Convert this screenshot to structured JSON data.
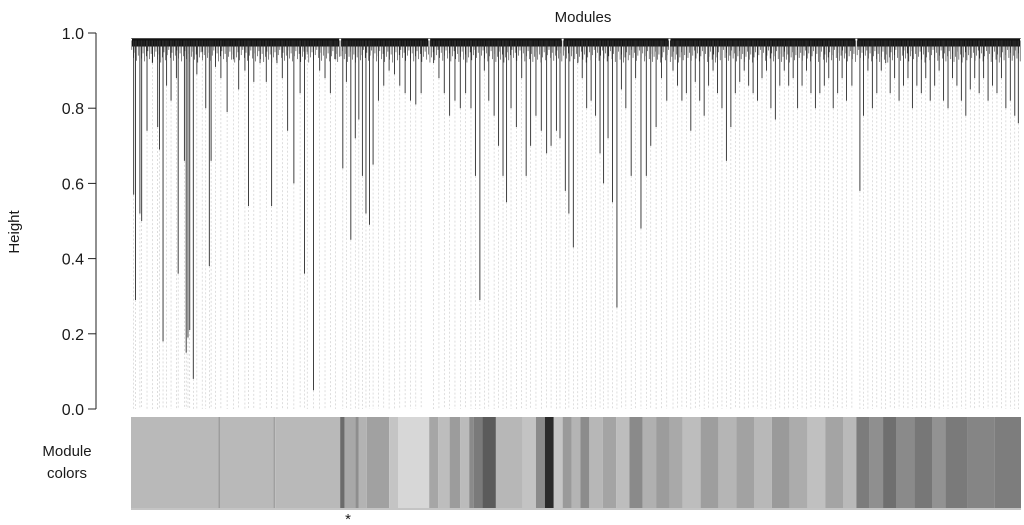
{
  "chart_data": {
    "type": "dendrogram",
    "title": "Modules",
    "ylabel": "Height",
    "ylim": [
      0,
      1
    ],
    "yticks": [
      "0.0",
      "0.2",
      "0.4",
      "0.6",
      "0.8",
      "1.0"
    ],
    "color_bar_label": [
      "Module",
      "colors"
    ],
    "marker_symbol": "*",
    "merge_height": 0.98,
    "clusters": [
      {
        "span": [
          0.0,
          0.235
        ],
        "shade": "#b9b9b9",
        "leaves": [
          [
            0.003,
            0.57
          ],
          [
            0.005,
            0.29
          ],
          [
            0.01,
            0.52
          ],
          [
            0.012,
            0.5
          ],
          [
            0.018,
            0.74
          ],
          [
            0.024,
            0.92
          ],
          [
            0.03,
            0.75
          ],
          [
            0.032,
            0.69
          ],
          [
            0.036,
            0.18
          ],
          [
            0.04,
            0.86
          ],
          [
            0.045,
            0.82
          ],
          [
            0.051,
            0.88
          ],
          [
            0.053,
            0.36
          ],
          [
            0.06,
            0.66
          ],
          [
            0.062,
            0.15
          ],
          [
            0.064,
            0.19
          ],
          [
            0.066,
            0.21
          ],
          [
            0.07,
            0.08
          ],
          [
            0.074,
            0.89
          ],
          [
            0.08,
            0.95
          ],
          [
            0.084,
            0.8
          ],
          [
            0.088,
            0.38
          ],
          [
            0.09,
            0.66
          ],
          [
            0.095,
            0.91
          ],
          [
            0.101,
            0.88
          ],
          [
            0.108,
            0.79
          ],
          [
            0.115,
            0.93
          ],
          [
            0.121,
            0.85
          ],
          [
            0.128,
            0.9
          ],
          [
            0.132,
            0.54
          ],
          [
            0.138,
            0.87
          ],
          [
            0.145,
            0.92
          ],
          [
            0.152,
            0.87
          ],
          [
            0.158,
            0.54
          ],
          [
            0.164,
            0.92
          ],
          [
            0.17,
            0.88
          ],
          [
            0.176,
            0.74
          ],
          [
            0.183,
            0.6
          ],
          [
            0.19,
            0.84
          ],
          [
            0.195,
            0.36
          ],
          [
            0.198,
            0.95
          ],
          [
            0.205,
            0.05
          ],
          [
            0.212,
            0.9
          ],
          [
            0.218,
            0.88
          ],
          [
            0.224,
            0.84
          ],
          [
            0.23,
            0.93
          ]
        ]
      },
      {
        "span": [
          0.235,
          0.335
        ],
        "shade": "#a3a3a3",
        "leaves": [
          [
            0.238,
            0.64
          ],
          [
            0.242,
            0.87
          ],
          [
            0.247,
            0.45
          ],
          [
            0.252,
            0.72
          ],
          [
            0.256,
            0.77
          ],
          [
            0.26,
            0.62
          ],
          [
            0.264,
            0.52
          ],
          [
            0.268,
            0.49
          ],
          [
            0.272,
            0.65
          ],
          [
            0.278,
            0.82
          ],
          [
            0.284,
            0.86
          ],
          [
            0.29,
            0.9
          ],
          [
            0.296,
            0.89
          ],
          [
            0.302,
            0.86
          ],
          [
            0.308,
            0.84
          ],
          [
            0.314,
            0.82
          ],
          [
            0.32,
            0.81
          ],
          [
            0.326,
            0.84
          ]
        ]
      },
      {
        "span": [
          0.335,
          0.485
        ],
        "shade": "#bcbcbc",
        "leaves": [
          [
            0.34,
            0.92
          ],
          [
            0.346,
            0.88
          ],
          [
            0.352,
            0.84
          ],
          [
            0.358,
            0.78
          ],
          [
            0.364,
            0.82
          ],
          [
            0.37,
            0.8
          ],
          [
            0.376,
            0.84
          ],
          [
            0.382,
            0.8
          ],
          [
            0.387,
            0.62
          ],
          [
            0.392,
            0.29
          ],
          [
            0.397,
            0.9
          ],
          [
            0.402,
            0.82
          ],
          [
            0.408,
            0.78
          ],
          [
            0.413,
            0.7
          ],
          [
            0.418,
            0.62
          ],
          [
            0.422,
            0.55
          ],
          [
            0.427,
            0.8
          ],
          [
            0.433,
            0.75
          ],
          [
            0.439,
            0.88
          ],
          [
            0.444,
            0.62
          ],
          [
            0.449,
            0.7
          ],
          [
            0.455,
            0.78
          ],
          [
            0.461,
            0.74
          ],
          [
            0.467,
            0.68
          ],
          [
            0.472,
            0.7
          ],
          [
            0.478,
            0.74
          ],
          [
            0.482,
            0.72
          ]
        ]
      },
      {
        "span": [
          0.485,
          0.605
        ],
        "shade": "#6e6e6e",
        "leaves": [
          [
            0.488,
            0.58
          ],
          [
            0.492,
            0.52
          ],
          [
            0.497,
            0.43
          ],
          [
            0.502,
            0.92
          ],
          [
            0.507,
            0.88
          ],
          [
            0.512,
            0.8
          ],
          [
            0.517,
            0.82
          ],
          [
            0.522,
            0.78
          ],
          [
            0.527,
            0.68
          ],
          [
            0.531,
            0.6
          ],
          [
            0.536,
            0.72
          ],
          [
            0.541,
            0.55
          ],
          [
            0.546,
            0.27
          ],
          [
            0.551,
            0.85
          ],
          [
            0.556,
            0.8
          ],
          [
            0.562,
            0.62
          ],
          [
            0.567,
            0.88
          ],
          [
            0.573,
            0.48
          ],
          [
            0.579,
            0.62
          ],
          [
            0.584,
            0.7
          ],
          [
            0.59,
            0.75
          ],
          [
            0.596,
            0.88
          ],
          [
            0.602,
            0.82
          ]
        ]
      },
      {
        "span": [
          0.605,
          0.815
        ],
        "shade": "#adadad",
        "leaves": [
          [
            0.609,
            0.9
          ],
          [
            0.614,
            0.86
          ],
          [
            0.619,
            0.82
          ],
          [
            0.624,
            0.84
          ],
          [
            0.629,
            0.74
          ],
          [
            0.634,
            0.87
          ],
          [
            0.639,
            0.82
          ],
          [
            0.644,
            0.78
          ],
          [
            0.649,
            0.86
          ],
          [
            0.654,
            0.9
          ],
          [
            0.659,
            0.84
          ],
          [
            0.664,
            0.8
          ],
          [
            0.669,
            0.66
          ],
          [
            0.674,
            0.75
          ],
          [
            0.679,
            0.84
          ],
          [
            0.684,
            0.87
          ],
          [
            0.689,
            0.9
          ],
          [
            0.694,
            0.86
          ],
          [
            0.699,
            0.84
          ],
          [
            0.704,
            0.82
          ],
          [
            0.709,
            0.88
          ],
          [
            0.714,
            0.9
          ],
          [
            0.719,
            0.8
          ],
          [
            0.724,
            0.77
          ],
          [
            0.729,
            0.86
          ],
          [
            0.734,
            0.9
          ],
          [
            0.739,
            0.86
          ],
          [
            0.744,
            0.88
          ],
          [
            0.749,
            0.8
          ],
          [
            0.754,
            0.86
          ],
          [
            0.759,
            0.9
          ],
          [
            0.764,
            0.84
          ],
          [
            0.769,
            0.8
          ],
          [
            0.774,
            0.84
          ],
          [
            0.779,
            0.86
          ],
          [
            0.784,
            0.88
          ],
          [
            0.789,
            0.8
          ],
          [
            0.794,
            0.84
          ],
          [
            0.799,
            0.88
          ],
          [
            0.804,
            0.82
          ],
          [
            0.81,
            0.86
          ]
        ]
      },
      {
        "span": [
          0.815,
          1.0
        ],
        "shade": "#7f7f7f",
        "leaves": [
          [
            0.819,
            0.58
          ],
          [
            0.823,
            0.78
          ],
          [
            0.828,
            0.9
          ],
          [
            0.833,
            0.8
          ],
          [
            0.838,
            0.84
          ],
          [
            0.843,
            0.9
          ],
          [
            0.848,
            0.92
          ],
          [
            0.853,
            0.84
          ],
          [
            0.858,
            0.88
          ],
          [
            0.863,
            0.82
          ],
          [
            0.868,
            0.86
          ],
          [
            0.873,
            0.88
          ],
          [
            0.878,
            0.8
          ],
          [
            0.883,
            0.86
          ],
          [
            0.888,
            0.84
          ],
          [
            0.893,
            0.88
          ],
          [
            0.898,
            0.82
          ],
          [
            0.903,
            0.86
          ],
          [
            0.908,
            0.9
          ],
          [
            0.913,
            0.82
          ],
          [
            0.918,
            0.8
          ],
          [
            0.923,
            0.88
          ],
          [
            0.928,
            0.86
          ],
          [
            0.933,
            0.82
          ],
          [
            0.938,
            0.78
          ],
          [
            0.943,
            0.85
          ],
          [
            0.948,
            0.88
          ],
          [
            0.953,
            0.84
          ],
          [
            0.958,
            0.88
          ],
          [
            0.963,
            0.82
          ],
          [
            0.968,
            0.86
          ],
          [
            0.973,
            0.84
          ],
          [
            0.978,
            0.88
          ],
          [
            0.983,
            0.8
          ],
          [
            0.988,
            0.82
          ],
          [
            0.993,
            0.78
          ],
          [
            0.997,
            0.76
          ]
        ]
      }
    ],
    "module_color_segments": [
      [
        0.0,
        0.098,
        "#b9b9b9"
      ],
      [
        0.098,
        0.1,
        "#9d9d9d"
      ],
      [
        0.1,
        0.16,
        "#b9b9b9"
      ],
      [
        0.16,
        0.162,
        "#a0a0a0"
      ],
      [
        0.162,
        0.235,
        "#b9b9b9"
      ],
      [
        0.235,
        0.24,
        "#6b6b6b"
      ],
      [
        0.24,
        0.252,
        "#a8a8a8"
      ],
      [
        0.252,
        0.256,
        "#8e8e8e"
      ],
      [
        0.256,
        0.265,
        "#b3b3b3"
      ],
      [
        0.265,
        0.29,
        "#a1a1a1"
      ],
      [
        0.29,
        0.3,
        "#c4c4c4"
      ],
      [
        0.3,
        0.335,
        "#d7d7d7"
      ],
      [
        0.335,
        0.345,
        "#a6a6a6"
      ],
      [
        0.345,
        0.358,
        "#bdbdbd"
      ],
      [
        0.358,
        0.37,
        "#9c9c9c"
      ],
      [
        0.37,
        0.38,
        "#bbbbbb"
      ],
      [
        0.38,
        0.385,
        "#8a8a8a"
      ],
      [
        0.385,
        0.395,
        "#7a7a7a"
      ],
      [
        0.395,
        0.41,
        "#5b5b5b"
      ],
      [
        0.41,
        0.44,
        "#b7b7b7"
      ],
      [
        0.44,
        0.455,
        "#c3c3c3"
      ],
      [
        0.455,
        0.465,
        "#8a8a8a"
      ],
      [
        0.465,
        0.475,
        "#2a2a2a"
      ],
      [
        0.475,
        0.485,
        "#c5c5c5"
      ],
      [
        0.485,
        0.495,
        "#9a9a9a"
      ],
      [
        0.495,
        0.505,
        "#b4b4b4"
      ],
      [
        0.505,
        0.515,
        "#8c8c8c"
      ],
      [
        0.515,
        0.53,
        "#b7b7b7"
      ],
      [
        0.53,
        0.545,
        "#a4a4a4"
      ],
      [
        0.545,
        0.56,
        "#bdbdbd"
      ],
      [
        0.56,
        0.575,
        "#8a8a8a"
      ],
      [
        0.575,
        0.59,
        "#b0b0b0"
      ],
      [
        0.59,
        0.605,
        "#9c9c9c"
      ],
      [
        0.605,
        0.62,
        "#a9a9a9"
      ],
      [
        0.62,
        0.64,
        "#bdbdbd"
      ],
      [
        0.64,
        0.66,
        "#9e9e9e"
      ],
      [
        0.66,
        0.68,
        "#b5b5b5"
      ],
      [
        0.68,
        0.7,
        "#a2a2a2"
      ],
      [
        0.7,
        0.72,
        "#b8b8b8"
      ],
      [
        0.72,
        0.74,
        "#9a9a9a"
      ],
      [
        0.74,
        0.76,
        "#acacac"
      ],
      [
        0.76,
        0.78,
        "#c0c0c0"
      ],
      [
        0.78,
        0.8,
        "#a4a4a4"
      ],
      [
        0.8,
        0.815,
        "#b9b9b9"
      ],
      [
        0.815,
        0.83,
        "#7c7c7c"
      ],
      [
        0.83,
        0.845,
        "#8f8f8f"
      ],
      [
        0.845,
        0.86,
        "#6f6f6f"
      ],
      [
        0.86,
        0.88,
        "#8a8a8a"
      ],
      [
        0.88,
        0.9,
        "#777777"
      ],
      [
        0.9,
        0.915,
        "#929292"
      ],
      [
        0.915,
        0.94,
        "#7a7a7a"
      ],
      [
        0.94,
        0.97,
        "#858585"
      ],
      [
        0.97,
        1.0,
        "#7d7d7d"
      ]
    ],
    "grid": false,
    "legend": "none"
  }
}
